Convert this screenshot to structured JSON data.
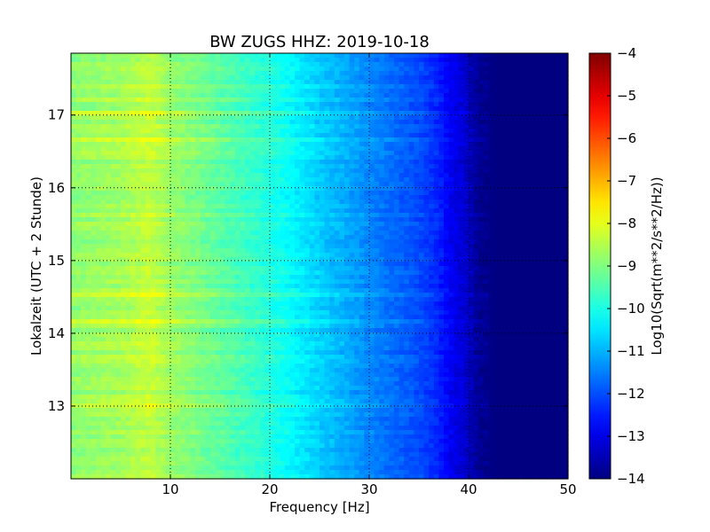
{
  "chart_data": {
    "type": "heatmap",
    "title": "BW ZUGS HHZ: 2019-10-18",
    "xlabel": "Frequency [Hz]",
    "ylabel": "Lokalzeit (UTC + 2 Stunde)",
    "xlim": [
      0,
      50
    ],
    "ylim": [
      17.85,
      12.0
    ],
    "x_ticks": [
      10,
      20,
      30,
      40,
      50
    ],
    "y_ticks": [
      13,
      14,
      15,
      16,
      17
    ],
    "grid": true,
    "colormap": "jet",
    "colorbar": {
      "label": "Log10(Sqrt(m**2/s**2/Hz))",
      "range": [
        -14,
        -4
      ],
      "ticks": [
        -14,
        -13,
        -12,
        -11,
        -10,
        -9,
        -8,
        -7,
        -6,
        -5,
        -4
      ]
    },
    "spectral_profile": {
      "frequency_hz": [
        0,
        5,
        8,
        10,
        15,
        20,
        22,
        25,
        28,
        30,
        35,
        37,
        38,
        40,
        41,
        43,
        50
      ],
      "log10_amplitude": [
        -8.8,
        -8.6,
        -8.3,
        -8.7,
        -9.3,
        -9.9,
        -10.2,
        -10.7,
        -11.1,
        -11.4,
        -12.0,
        -12.4,
        -12.8,
        -13.3,
        -13.8,
        -14.0,
        -14.0
      ]
    },
    "colors": {
      "grid": "#000000",
      "frame": "#000000"
    }
  }
}
